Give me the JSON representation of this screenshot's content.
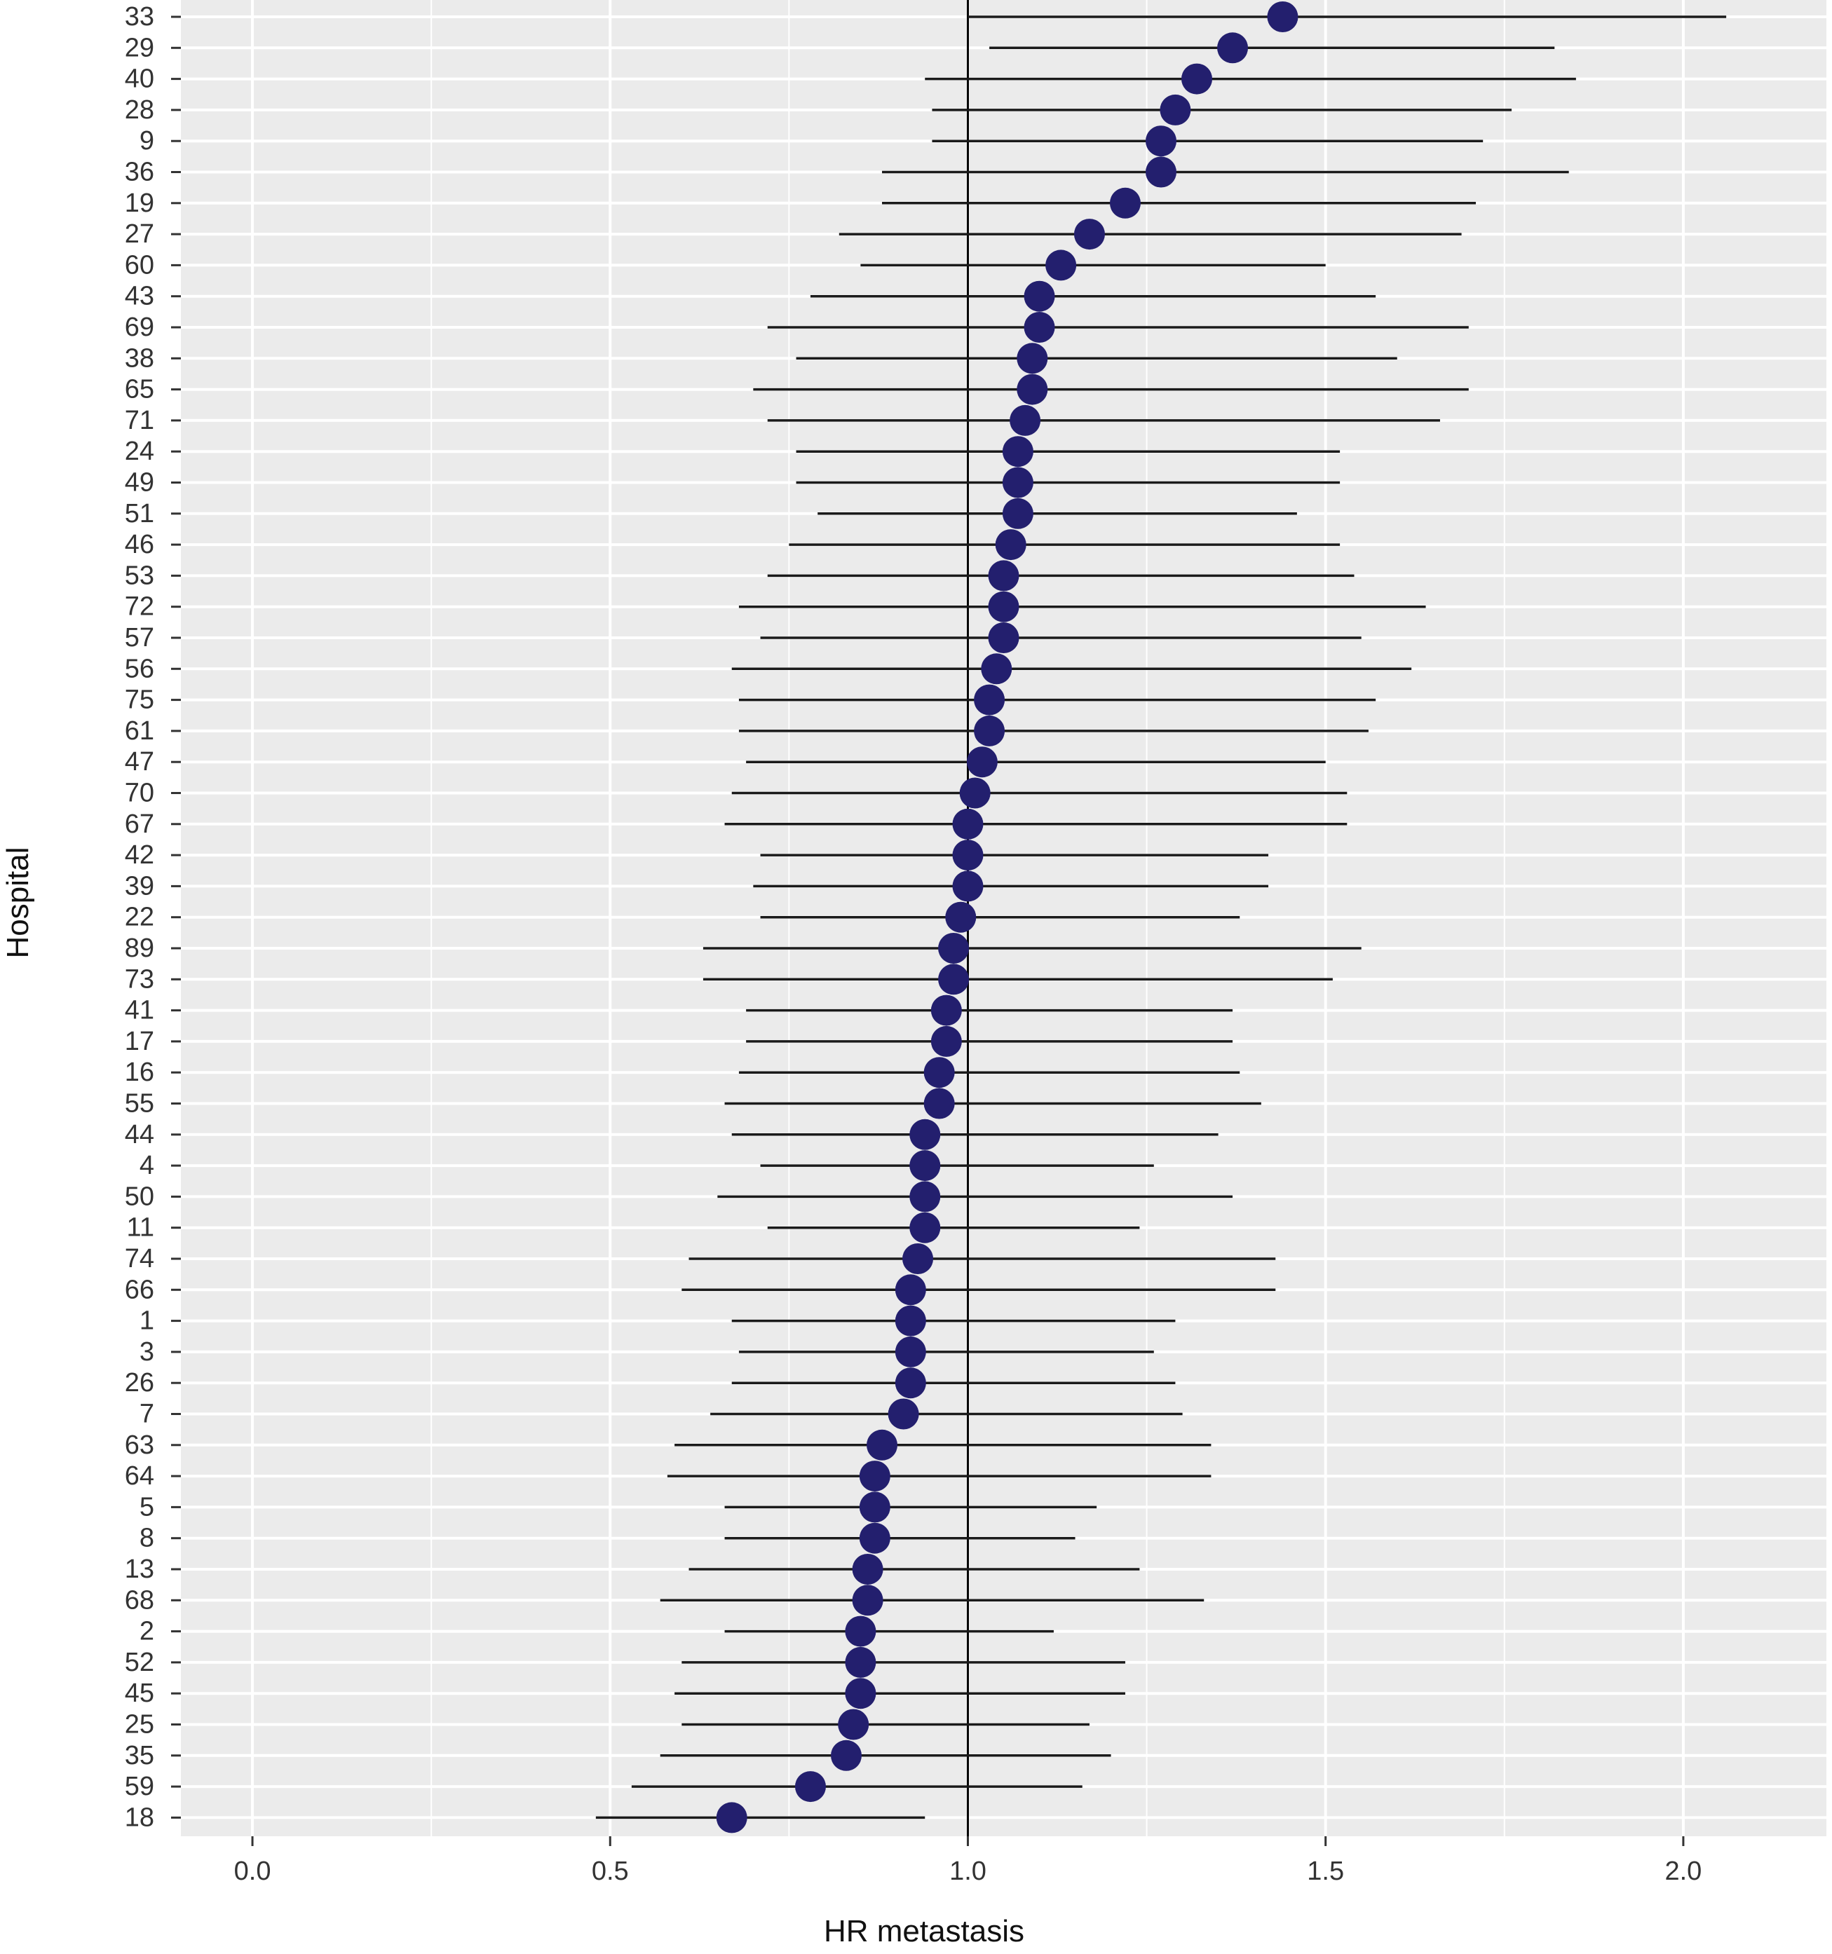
{
  "chart_data": {
    "type": "scatter",
    "subtype": "forest-plot",
    "title": "",
    "xlabel": "HR metastasis",
    "ylabel": "Hospital",
    "xlim": [
      -0.1,
      2.2
    ],
    "x_ticks": [
      0.0,
      0.5,
      1.0,
      1.5,
      2.0
    ],
    "x_tick_labels": [
      "0.0",
      "0.5",
      "1.0",
      "1.5",
      "2.0"
    ],
    "reference_line": 1.0,
    "grid": true,
    "legend": "none",
    "colors": {
      "panel": "#ebebeb",
      "grid": "#ffffff",
      "point": "#231f6e",
      "line": "#000000"
    },
    "categories": [
      "33",
      "29",
      "40",
      "28",
      "9",
      "36",
      "19",
      "27",
      "60",
      "43",
      "69",
      "38",
      "65",
      "71",
      "24",
      "49",
      "51",
      "46",
      "53",
      "72",
      "57",
      "56",
      "75",
      "61",
      "47",
      "70",
      "67",
      "42",
      "39",
      "22",
      "89",
      "73",
      "41",
      "17",
      "16",
      "55",
      "44",
      "4",
      "50",
      "11",
      "74",
      "66",
      "1",
      "3",
      "26",
      "7",
      "63",
      "64",
      "5",
      "8",
      "13",
      "68",
      "2",
      "52",
      "45",
      "25",
      "35",
      "59",
      "18"
    ],
    "series": [
      {
        "hr": [
          1.44,
          1.37,
          1.32,
          1.29,
          1.27,
          1.27,
          1.22,
          1.17,
          1.13,
          1.1,
          1.1,
          1.09,
          1.09,
          1.08,
          1.07,
          1.07,
          1.07,
          1.06,
          1.05,
          1.05,
          1.05,
          1.04,
          1.03,
          1.03,
          1.02,
          1.01,
          1.0,
          1.0,
          1.0,
          0.99,
          0.98,
          0.98,
          0.97,
          0.97,
          0.96,
          0.96,
          0.94,
          0.94,
          0.94,
          0.94,
          0.93,
          0.92,
          0.92,
          0.92,
          0.92,
          0.91,
          0.88,
          0.87,
          0.87,
          0.87,
          0.86,
          0.86,
          0.85,
          0.85,
          0.85,
          0.84,
          0.83,
          0.78,
          0.67
        ],
        "lower": [
          1.0,
          1.03,
          0.94,
          0.95,
          0.95,
          0.88,
          0.88,
          0.82,
          0.85,
          0.78,
          0.72,
          0.76,
          0.7,
          0.72,
          0.76,
          0.76,
          0.79,
          0.75,
          0.72,
          0.68,
          0.71,
          0.67,
          0.68,
          0.68,
          0.69,
          0.67,
          0.66,
          0.71,
          0.7,
          0.71,
          0.63,
          0.63,
          0.69,
          0.69,
          0.68,
          0.66,
          0.67,
          0.71,
          0.65,
          0.72,
          0.61,
          0.6,
          0.67,
          0.68,
          0.67,
          0.64,
          0.59,
          0.58,
          0.66,
          0.66,
          0.61,
          0.57,
          0.66,
          0.6,
          0.59,
          0.6,
          0.57,
          0.53,
          0.48
        ],
        "upper": [
          2.06,
          1.82,
          1.85,
          1.76,
          1.72,
          1.84,
          1.71,
          1.69,
          1.5,
          1.57,
          1.7,
          1.6,
          1.7,
          1.66,
          1.52,
          1.52,
          1.46,
          1.52,
          1.54,
          1.64,
          1.55,
          1.62,
          1.57,
          1.56,
          1.5,
          1.53,
          1.53,
          1.42,
          1.42,
          1.38,
          1.55,
          1.51,
          1.37,
          1.37,
          1.38,
          1.41,
          1.35,
          1.26,
          1.37,
          1.24,
          1.43,
          1.43,
          1.29,
          1.26,
          1.29,
          1.3,
          1.34,
          1.34,
          1.18,
          1.15,
          1.24,
          1.33,
          1.12,
          1.22,
          1.22,
          1.17,
          1.2,
          1.16,
          0.94
        ]
      }
    ]
  }
}
